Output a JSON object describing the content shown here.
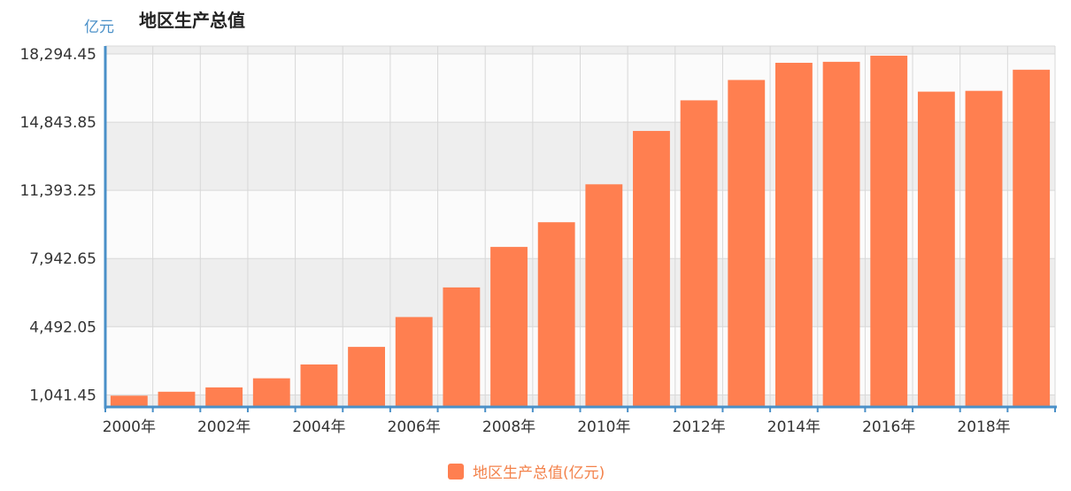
{
  "chart_data": {
    "type": "bar",
    "title": "地区生产总值",
    "unit_label": "亿元",
    "categories": [
      "2000年",
      "2001年",
      "2002年",
      "2003年",
      "2004年",
      "2005年",
      "2006年",
      "2007年",
      "2008年",
      "2009年",
      "2010年",
      "2011年",
      "2012年",
      "2013年",
      "2014年",
      "2015年",
      "2016年",
      "2017年",
      "2018年",
      "2019年"
    ],
    "x_tick_labels": [
      "2000年",
      "",
      "2002年",
      "",
      "2004年",
      "",
      "2006年",
      "",
      "2008年",
      "",
      "2010年",
      "",
      "2012年",
      "",
      "2014年",
      "",
      "2016年",
      "",
      "2018年",
      ""
    ],
    "series": [
      {
        "name": "地区生产总值(亿元)",
        "color": "#ff7f50",
        "values": [
          1000,
          1200,
          1420,
          1880,
          2580,
          3470,
          4980,
          6480,
          8530,
          9780,
          11700,
          14400,
          15950,
          16980,
          17850,
          17900,
          18210,
          16390,
          16430,
          17500
        ]
      }
    ],
    "y_ticks": [
      1041.45,
      4492.05,
      7942.65,
      11393.25,
      14843.85,
      18294.45
    ],
    "y_tick_labels": [
      "1,041.45",
      "4,492.05",
      "7,942.65",
      "11,393.25",
      "14,843.85",
      "18,294.45"
    ],
    "ylim": [
      430,
      18700
    ],
    "grid": true,
    "legend_position": "bottom-center",
    "colors": {
      "bar": "#ff7f50",
      "axis": "#4a90c8",
      "band_a": "#eeeeee",
      "band_b": "#fbfbfb",
      "grid": "#d8d8d8"
    }
  }
}
